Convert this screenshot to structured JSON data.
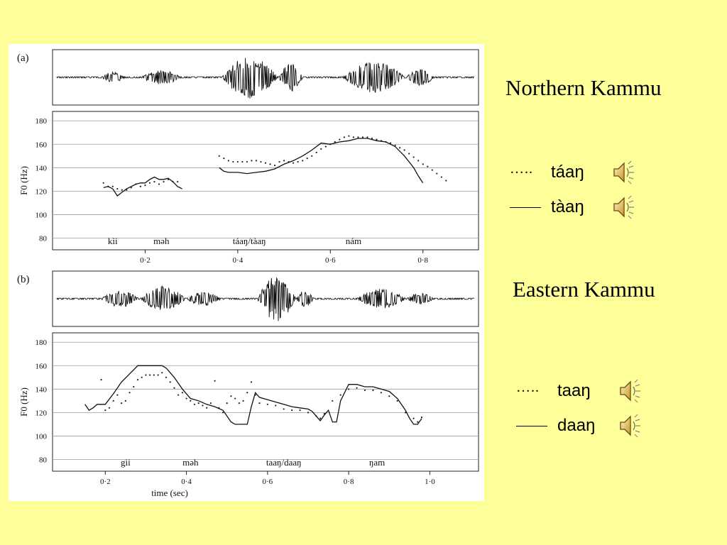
{
  "right_panel": {
    "northern_title": "Northern Kammu",
    "eastern_title": "Eastern Kammu",
    "northern_items": [
      {
        "style": "dotted",
        "marker": "…..",
        "word": "táaŋ",
        "icon": "speaker-icon"
      },
      {
        "style": "solid",
        "word": "tàaŋ",
        "icon": "speaker-icon"
      }
    ],
    "eastern_items": [
      {
        "style": "dotted",
        "marker": "…..",
        "word": "taaŋ",
        "icon": "speaker-icon"
      },
      {
        "style": "solid",
        "word": "daaŋ",
        "icon": "speaker-icon"
      }
    ]
  },
  "chart_data": [
    {
      "type": "line",
      "panel_label": "(a)",
      "ylabel": "F0 (Hz)",
      "yticks": [
        80,
        100,
        120,
        140,
        160,
        180
      ],
      "ylim": [
        70,
        188
      ],
      "xticks": [
        "0·2",
        "0·4",
        "0·6",
        "0·8"
      ],
      "xtick_values": [
        0.2,
        0.4,
        0.6,
        0.8
      ],
      "xlim": [
        0.0,
        0.92
      ],
      "grid": true,
      "syllables": [
        {
          "text": "kìi",
          "x": 0.13
        },
        {
          "text": "məh",
          "x": 0.235
        },
        {
          "text": "táaŋ/tàaŋ",
          "x": 0.425
        },
        {
          "text": "nám",
          "x": 0.65
        }
      ],
      "series": [
        {
          "style": "dotted",
          "points": [
            [
              0.11,
              127
            ],
            [
              0.12,
              124
            ],
            [
              0.13,
              124
            ],
            [
              0.14,
              122
            ],
            [
              0.15,
              121
            ],
            [
              0.16,
              121
            ],
            [
              0.17,
              123
            ],
            [
              0.18,
              126
            ],
            [
              0.19,
              124
            ],
            [
              0.2,
              125
            ],
            [
              0.21,
              127
            ],
            [
              0.22,
              128
            ],
            [
              0.23,
              126
            ],
            [
              0.24,
              128
            ],
            [
              0.25,
              130
            ],
            [
              0.26,
              128
            ],
            [
              0.27,
              128
            ],
            [
              0.36,
              150
            ],
            [
              0.37,
              148
            ],
            [
              0.38,
              146
            ],
            [
              0.39,
              145
            ],
            [
              0.4,
              145
            ],
            [
              0.41,
              145
            ],
            [
              0.42,
              145
            ],
            [
              0.43,
              146
            ],
            [
              0.44,
              146
            ],
            [
              0.45,
              145
            ],
            [
              0.46,
              144
            ],
            [
              0.47,
              143
            ],
            [
              0.48,
              142
            ],
            [
              0.49,
              145
            ],
            [
              0.5,
              146
            ],
            [
              0.51,
              145
            ],
            [
              0.52,
              144
            ],
            [
              0.53,
              145
            ],
            [
              0.54,
              146
            ],
            [
              0.55,
              148
            ],
            [
              0.56,
              150
            ],
            [
              0.57,
              153
            ],
            [
              0.58,
              156
            ],
            [
              0.59,
              158
            ],
            [
              0.6,
              160
            ],
            [
              0.61,
              162
            ],
            [
              0.62,
              164
            ],
            [
              0.63,
              166
            ],
            [
              0.64,
              167
            ],
            [
              0.65,
              166
            ],
            [
              0.66,
              166
            ],
            [
              0.67,
              166
            ],
            [
              0.68,
              166
            ],
            [
              0.69,
              165
            ],
            [
              0.7,
              164
            ],
            [
              0.71,
              163
            ],
            [
              0.72,
              162
            ],
            [
              0.73,
              161
            ],
            [
              0.74,
              159
            ],
            [
              0.75,
              157
            ],
            [
              0.76,
              155
            ],
            [
              0.77,
              152
            ],
            [
              0.78,
              149
            ],
            [
              0.79,
              146
            ],
            [
              0.8,
              143
            ],
            [
              0.81,
              141
            ],
            [
              0.82,
              138
            ],
            [
              0.83,
              135
            ],
            [
              0.84,
              132
            ],
            [
              0.85,
              129
            ]
          ]
        },
        {
          "style": "solid",
          "points": [
            [
              0.11,
              123
            ],
            [
              0.12,
              124
            ],
            [
              0.13,
              122
            ],
            [
              0.14,
              116
            ],
            [
              0.15,
              119
            ],
            [
              0.16,
              122
            ],
            [
              0.17,
              124
            ],
            [
              0.18,
              126
            ],
            [
              0.19,
              127
            ],
            [
              0.2,
              127
            ],
            [
              0.21,
              130
            ],
            [
              0.22,
              132
            ],
            [
              0.23,
              130
            ],
            [
              0.24,
              130
            ],
            [
              0.25,
              131
            ],
            [
              0.26,
              128
            ],
            [
              0.27,
              124
            ],
            [
              0.28,
              122
            ],
            [
              0.36,
              140
            ],
            [
              0.37,
              137
            ],
            [
              0.38,
              136
            ],
            [
              0.4,
              136
            ],
            [
              0.42,
              135
            ],
            [
              0.44,
              136
            ],
            [
              0.46,
              137
            ],
            [
              0.48,
              139
            ],
            [
              0.5,
              143
            ],
            [
              0.52,
              146
            ],
            [
              0.54,
              150
            ],
            [
              0.56,
              155
            ],
            [
              0.58,
              161
            ],
            [
              0.6,
              160
            ],
            [
              0.62,
              162
            ],
            [
              0.64,
              163
            ],
            [
              0.66,
              165
            ],
            [
              0.68,
              165
            ],
            [
              0.7,
              163
            ],
            [
              0.72,
              162
            ],
            [
              0.74,
              158
            ],
            [
              0.76,
              150
            ],
            [
              0.78,
              140
            ],
            [
              0.79,
              133
            ],
            [
              0.8,
              127
            ]
          ]
        }
      ]
    },
    {
      "type": "line",
      "panel_label": "(b)",
      "ylabel": "F0 (Hz)",
      "yticks": [
        80,
        100,
        120,
        140,
        160,
        180
      ],
      "ylim": [
        70,
        188
      ],
      "xticks": [
        "0·2",
        "0·4",
        "0·6",
        "0·8",
        "1·0"
      ],
      "xtick_values": [
        0.2,
        0.4,
        0.6,
        0.8,
        1.0
      ],
      "xlim": [
        0.07,
        1.12
      ],
      "xlabel": "time (sec)",
      "grid": true,
      "syllables": [
        {
          "text": "gii",
          "x": 0.25
        },
        {
          "text": "məh",
          "x": 0.41
        },
        {
          "text": "taaŋ/daaŋ",
          "x": 0.64
        },
        {
          "text": "ŋam",
          "x": 0.87
        }
      ],
      "series": [
        {
          "style": "dotted",
          "points": [
            [
              0.19,
              148
            ],
            [
              0.2,
              122
            ],
            [
              0.21,
              124
            ],
            [
              0.22,
              130
            ],
            [
              0.23,
              135
            ],
            [
              0.24,
              128
            ],
            [
              0.25,
              130
            ],
            [
              0.26,
              137
            ],
            [
              0.27,
              142
            ],
            [
              0.28,
              148
            ],
            [
              0.29,
              150
            ],
            [
              0.3,
              152
            ],
            [
              0.31,
              152
            ],
            [
              0.32,
              152
            ],
            [
              0.33,
              152
            ],
            [
              0.34,
              154
            ],
            [
              0.35,
              150
            ],
            [
              0.36,
              146
            ],
            [
              0.37,
              141
            ],
            [
              0.38,
              135
            ],
            [
              0.39,
              137
            ],
            [
              0.4,
              132
            ],
            [
              0.41,
              130
            ],
            [
              0.42,
              127
            ],
            [
              0.43,
              128
            ],
            [
              0.44,
              126
            ],
            [
              0.45,
              124
            ],
            [
              0.46,
              128
            ],
            [
              0.47,
              147
            ],
            [
              0.48,
              124
            ],
            [
              0.49,
              120
            ],
            [
              0.5,
              128
            ],
            [
              0.51,
              134
            ],
            [
              0.52,
              132
            ],
            [
              0.53,
              128
            ],
            [
              0.54,
              130
            ],
            [
              0.55,
              137
            ],
            [
              0.56,
              146
            ],
            [
              0.57,
              135
            ],
            [
              0.58,
              128
            ],
            [
              0.6,
              127
            ],
            [
              0.62,
              126
            ],
            [
              0.64,
              123
            ],
            [
              0.66,
              122
            ],
            [
              0.68,
              122
            ],
            [
              0.7,
              120
            ],
            [
              0.72,
              117
            ],
            [
              0.73,
              115
            ],
            [
              0.74,
              119
            ],
            [
              0.76,
              130
            ],
            [
              0.78,
              135
            ],
            [
              0.8,
              140
            ],
            [
              0.82,
              141
            ],
            [
              0.84,
              139
            ],
            [
              0.86,
              139
            ],
            [
              0.88,
              137
            ],
            [
              0.9,
              134
            ],
            [
              0.92,
              130
            ],
            [
              0.94,
              120
            ],
            [
              0.96,
              115
            ],
            [
              0.97,
              112
            ],
            [
              0.98,
              116
            ]
          ]
        },
        {
          "style": "solid",
          "points": [
            [
              0.15,
              127
            ],
            [
              0.16,
              122
            ],
            [
              0.17,
              124
            ],
            [
              0.18,
              127
            ],
            [
              0.2,
              127
            ],
            [
              0.22,
              136
            ],
            [
              0.24,
              146
            ],
            [
              0.26,
              153
            ],
            [
              0.28,
              160
            ],
            [
              0.3,
              160
            ],
            [
              0.32,
              160
            ],
            [
              0.34,
              160
            ],
            [
              0.35,
              158
            ],
            [
              0.37,
              150
            ],
            [
              0.39,
              140
            ],
            [
              0.41,
              132
            ],
            [
              0.43,
              130
            ],
            [
              0.45,
              127
            ],
            [
              0.47,
              125
            ],
            [
              0.49,
              122
            ],
            [
              0.5,
              117
            ],
            [
              0.51,
              112
            ],
            [
              0.52,
              110
            ],
            [
              0.53,
              110
            ],
            [
              0.54,
              110
            ],
            [
              0.55,
              110
            ],
            [
              0.56,
              125
            ],
            [
              0.57,
              137
            ],
            [
              0.58,
              133
            ],
            [
              0.6,
              131
            ],
            [
              0.62,
              129
            ],
            [
              0.64,
              127
            ],
            [
              0.66,
              125
            ],
            [
              0.68,
              124
            ],
            [
              0.7,
              123
            ],
            [
              0.71,
              121
            ],
            [
              0.72,
              117
            ],
            [
              0.73,
              113
            ],
            [
              0.74,
              118
            ],
            [
              0.75,
              122
            ],
            [
              0.76,
              112
            ],
            [
              0.77,
              112
            ],
            [
              0.78,
              130
            ],
            [
              0.8,
              144
            ],
            [
              0.82,
              144
            ],
            [
              0.84,
              142
            ],
            [
              0.86,
              142
            ],
            [
              0.88,
              140
            ],
            [
              0.9,
              138
            ],
            [
              0.92,
              132
            ],
            [
              0.94,
              122
            ],
            [
              0.95,
              115
            ],
            [
              0.96,
              110
            ],
            [
              0.97,
              110
            ],
            [
              0.98,
              115
            ]
          ]
        }
      ]
    }
  ]
}
